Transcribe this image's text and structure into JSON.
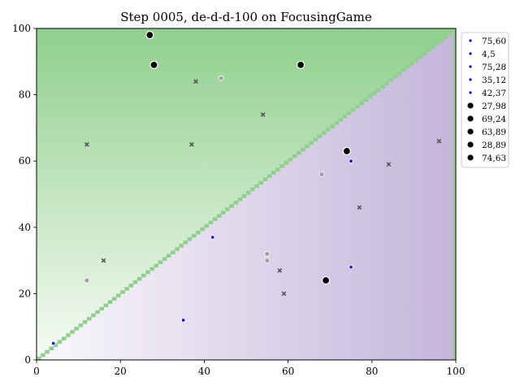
{
  "chart_data": {
    "type": "scatter",
    "title": "Step 0005, de-d-d-100 on FocusingGame",
    "xlabel": "",
    "ylabel": "",
    "xlim": [
      0,
      100
    ],
    "ylim": [
      0,
      100
    ],
    "x_ticks": [
      "0",
      "20",
      "40",
      "60",
      "80",
      "100"
    ],
    "y_ticks": [
      "0",
      "20",
      "40",
      "60",
      "80",
      "100"
    ],
    "grid": false,
    "legend_position": "outside-right-top",
    "background": {
      "upper_region_color_light": "#f7fbf5",
      "upper_region_color_dark": "#8fcf8c",
      "lower_region_color_light": "#faf8fc",
      "lower_region_color_dark": "#c3b5da",
      "diagonal_color": "#8fcf8c"
    },
    "series": [
      {
        "name": "75,60",
        "marker": "blue-dot",
        "color": "#0000ff",
        "points": [
          [
            75,
            60
          ],
          [
            4,
            5
          ],
          [
            75,
            28
          ],
          [
            35,
            12
          ],
          [
            42,
            37
          ]
        ]
      },
      {
        "name": "27,98",
        "marker": "black-dot",
        "color": "#000000",
        "points": [
          [
            27,
            98
          ],
          [
            69,
            24
          ],
          [
            63,
            89
          ],
          [
            28,
            89
          ],
          [
            74,
            63
          ]
        ]
      }
    ],
    "gray_points": [
      [
        44,
        85
      ],
      [
        68,
        56
      ],
      [
        12,
        24
      ],
      [
        55,
        32
      ],
      [
        55,
        30
      ]
    ],
    "x_marks": [
      [
        38,
        84
      ],
      [
        54,
        74
      ],
      [
        12,
        65
      ],
      [
        37,
        65
      ],
      [
        96,
        66
      ],
      [
        84,
        59
      ],
      [
        77,
        46
      ],
      [
        16,
        30
      ],
      [
        58,
        27
      ],
      [
        59,
        20
      ]
    ],
    "legend": [
      {
        "label": "75,60",
        "marker": "blue"
      },
      {
        "label": "4,5",
        "marker": "blue"
      },
      {
        "label": "75,28",
        "marker": "blue"
      },
      {
        "label": "35,12",
        "marker": "blue"
      },
      {
        "label": "42,37",
        "marker": "blue"
      },
      {
        "label": "27,98",
        "marker": "black"
      },
      {
        "label": "69,24",
        "marker": "black"
      },
      {
        "label": "63,89",
        "marker": "black"
      },
      {
        "label": "28,89",
        "marker": "black"
      },
      {
        "label": "74,63",
        "marker": "black"
      }
    ]
  }
}
